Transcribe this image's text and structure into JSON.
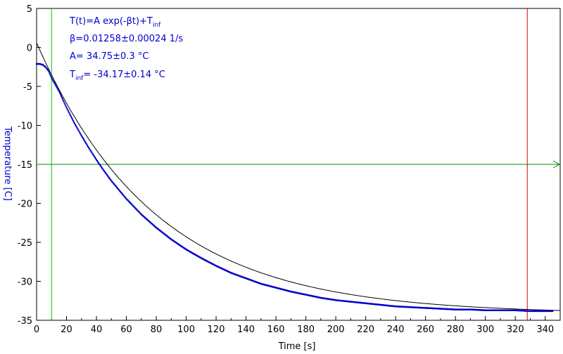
{
  "chart_data": {
    "type": "scatter",
    "xlabel": "Time [s]",
    "ylabel": "Temperature [C]",
    "xlim": [
      0,
      350
    ],
    "ylim": [
      -35,
      5
    ],
    "x_ticks": [
      0,
      10,
      20,
      30,
      40,
      50,
      60,
      70,
      80,
      90,
      100,
      110,
      120,
      130,
      140,
      150,
      160,
      170,
      180,
      190,
      200,
      210,
      220,
      230,
      240,
      250,
      260,
      270,
      280,
      290,
      300,
      310,
      320,
      330,
      340
    ],
    "x_tick_labels": [
      "0",
      "",
      "20",
      "",
      "40",
      "",
      "60",
      "",
      "80",
      "",
      "100",
      "",
      "120",
      "",
      "140",
      "",
      "160",
      "",
      "180",
      "",
      "200",
      "",
      "220",
      "",
      "240",
      "",
      "260",
      "",
      "280",
      "",
      "300",
      "",
      "320",
      "",
      "340"
    ],
    "y_ticks": [
      5,
      0,
      -5,
      -10,
      -15,
      -20,
      -25,
      -30,
      -35
    ],
    "y_tick_labels": [
      "5",
      "0",
      "-5",
      "-10",
      "-15",
      "-20",
      "-25",
      "-30",
      "-35"
    ],
    "grid": false,
    "fit": {
      "formula_main": "T(t)=A exp(-βt)+T",
      "formula_sub": "inf",
      "beta_line": "β=0.01258±0.00024 1/s",
      "a_line": "A= 34.75±0.3 °C",
      "tinf_main": "T",
      "tinf_sub": "inf",
      "tinf_rest": "= -34.17±0.14 °C",
      "A": 34.75,
      "beta": 0.01258,
      "T_inf": -34.17
    },
    "series": [
      {
        "x": [
          0,
          2,
          4,
          6,
          8,
          10,
          15,
          20,
          25,
          30,
          35,
          40,
          45,
          50,
          60,
          70,
          80,
          90,
          100,
          110,
          120,
          130,
          140,
          150,
          160,
          170,
          180,
          190,
          200,
          210,
          220,
          230,
          240,
          250,
          260,
          270,
          280,
          290,
          300,
          310,
          320,
          330,
          340,
          345
        ],
        "y": [
          -2.1,
          -2.1,
          -2.2,
          -2.5,
          -3.0,
          -3.9,
          -5.6,
          -7.7,
          -9.6,
          -11.3,
          -12.9,
          -14.4,
          -15.8,
          -17.1,
          -19.4,
          -21.4,
          -23.1,
          -24.6,
          -25.9,
          -27.0,
          -28.0,
          -28.9,
          -29.6,
          -30.3,
          -30.8,
          -31.3,
          -31.7,
          -32.1,
          -32.4,
          -32.6,
          -32.8,
          -33.0,
          -33.2,
          -33.3,
          -33.4,
          -33.5,
          -33.6,
          -33.6,
          -33.7,
          -33.7,
          -33.7,
          -33.8,
          -33.8,
          -33.8
        ],
        "color": "#0000cc"
      }
    ],
    "markers": {
      "green_vline_x": 10,
      "red_vline_x": 328,
      "hline_y": -15
    },
    "colors": {
      "data": "#0000cc",
      "fit": "#000000",
      "green_line": "#00cc00",
      "red_line": "#dd0000",
      "hline": "#008800",
      "ylabel": "#0000cc",
      "annotation": "#0000cc"
    }
  }
}
